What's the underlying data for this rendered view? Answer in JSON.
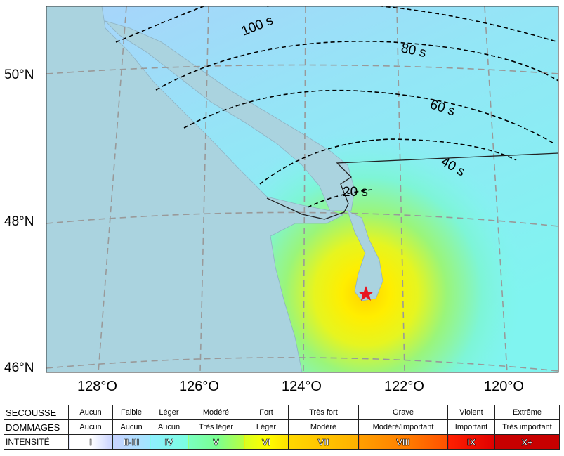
{
  "map": {
    "lat_labels": [
      "50°N",
      "48°N",
      "46°N"
    ],
    "lon_labels": [
      "128°O",
      "126°O",
      "124°O",
      "122°O",
      "120°O"
    ],
    "contour_labels": [
      "100 s",
      "80 s",
      "60 s",
      "40 s",
      "20 s"
    ],
    "epicenter_icon": "star-icon",
    "epicenter_color": "#e8141e",
    "ocean_color": "#aad3df"
  },
  "legend": {
    "row_headers": [
      "SECOUSSE",
      "DOMMAGES",
      "INTENSITÉ"
    ],
    "secousse": [
      "Aucun",
      "Faible",
      "Léger",
      "Modéré",
      "Fort",
      "Très fort",
      "Grave",
      "Violent",
      "Extrême"
    ],
    "dommages": [
      "Aucun",
      "Aucun",
      "Aucun",
      "Très léger",
      "Léger",
      "Modéré",
      "Modéré/Important",
      "Important",
      "Très important"
    ],
    "intensite": [
      "I",
      "II-III",
      "IV",
      "V",
      "VI",
      "VII",
      "VIII",
      "IX",
      "X+"
    ],
    "colors": [
      "#ffffff",
      "#bfccff",
      "#80ffff",
      "#7aff93",
      "#ffff00",
      "#ffc800",
      "#ff9100",
      "#ff0000",
      "#c80000"
    ]
  }
}
